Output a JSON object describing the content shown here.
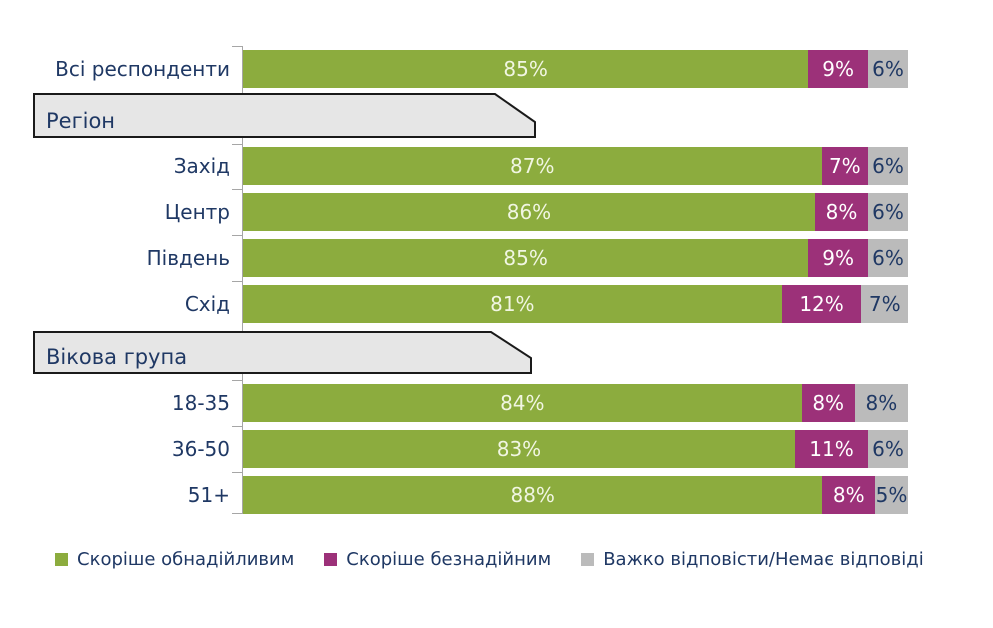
{
  "chart_data": {
    "type": "bar",
    "orientation": "horizontal",
    "stacked": true,
    "unit": "%",
    "value_labels": "inside",
    "grid": false,
    "xlim": [
      0,
      100
    ],
    "legend_position": "bottom",
    "categories": [
      "Всі респонденти",
      "Захід",
      "Центр",
      "Південь",
      "Схід",
      "18-35",
      "36-50",
      "51+"
    ],
    "group_headers": [
      {
        "label": "Регіон",
        "before_index": 1
      },
      {
        "label": "Вікова група",
        "before_index": 5
      }
    ],
    "series": [
      {
        "name": "Скоріше обнадійливим",
        "color": "#8cac3e",
        "label_color": "#f1f6e2",
        "values": [
          85,
          87,
          86,
          85,
          81,
          84,
          83,
          88
        ]
      },
      {
        "name": "Скоріше безнадійним",
        "color": "#9c3179",
        "label_color": "#ffffff",
        "values": [
          9,
          7,
          8,
          9,
          12,
          8,
          11,
          8
        ]
      },
      {
        "name": "Важко відповісти/Немає відповіді",
        "color": "#bbbbbb",
        "label_color": "#1f3864",
        "values": [
          6,
          6,
          6,
          6,
          7,
          8,
          6,
          5
        ]
      }
    ]
  },
  "colors": {
    "label_text": "#1f3864",
    "header_fill": "#e6e6e6",
    "header_border": "#1a1a1a",
    "axis": "#a6a6a6",
    "background": "#ffffff"
  }
}
